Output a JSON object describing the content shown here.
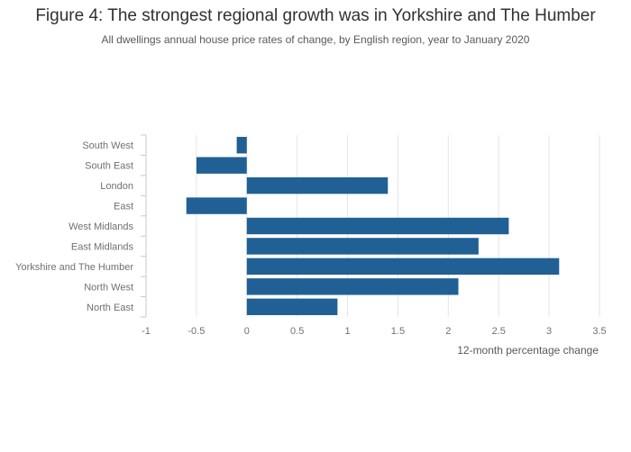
{
  "chart_data": {
    "type": "bar",
    "orientation": "horizontal",
    "title": "Figure 4: The strongest regional growth was in Yorkshire and The Humber",
    "subtitle": "All dwellings annual house price rates of change, by English region, year to January 2020",
    "xlabel": "12-month percentage change",
    "ylabel": "",
    "categories": [
      "South West",
      "South East",
      "London",
      "East",
      "West Midlands",
      "East Midlands",
      "Yorkshire and The Humber",
      "North West",
      "North East"
    ],
    "values": [
      -0.1,
      -0.5,
      1.4,
      -0.6,
      2.6,
      2.3,
      3.1,
      2.1,
      0.9
    ],
    "xlim": [
      -1,
      3.5
    ],
    "xticks": [
      "-1",
      "-0.5",
      "0",
      "0.5",
      "1",
      "1.5",
      "2",
      "2.5",
      "3",
      "3.5"
    ],
    "grid": true,
    "bar_color": "#206095"
  }
}
